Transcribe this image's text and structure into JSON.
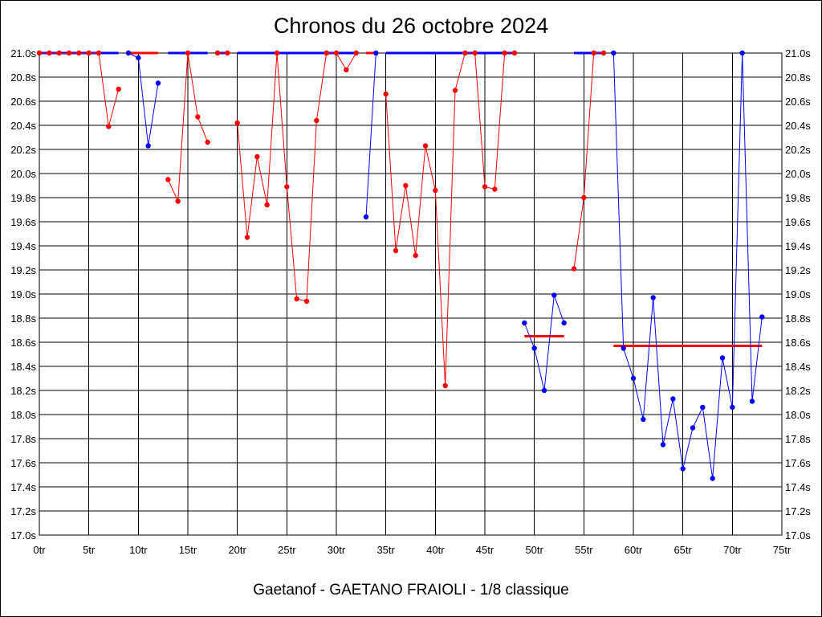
{
  "chart_data": {
    "type": "line",
    "title": "Chronos du 26 octobre 2024",
    "footer": "Gaetanof - GAETANO FRAIOLI - 1/8 classique",
    "xlabel": "",
    "ylabel": "",
    "x_tick_suffix": "tr",
    "y_tick_suffix": "s",
    "xlim": [
      0,
      75
    ],
    "ylim": [
      17.0,
      21.0
    ],
    "x_ticks": [
      0,
      5,
      10,
      15,
      20,
      25,
      30,
      35,
      40,
      45,
      50,
      55,
      60,
      65,
      70,
      75
    ],
    "y_ticks": [
      17.0,
      17.2,
      17.4,
      17.6,
      17.8,
      18.0,
      18.2,
      18.4,
      18.6,
      18.8,
      19.0,
      19.2,
      19.4,
      19.6,
      19.8,
      20.0,
      20.2,
      20.4,
      20.6,
      20.8,
      21.0
    ],
    "grid": true,
    "colors": {
      "red": "#ff0000",
      "blue": "#0000ff"
    },
    "segments": [
      {
        "color": "red",
        "points": [
          [
            0,
            21.0
          ],
          [
            1,
            21.0
          ],
          [
            2,
            21.0
          ],
          [
            3,
            21.0
          ],
          [
            4,
            21.0
          ],
          [
            5,
            21.0
          ],
          [
            6,
            21.0
          ],
          [
            7,
            20.39
          ],
          [
            8,
            20.7
          ]
        ]
      },
      {
        "color": "blue",
        "points": [
          [
            9,
            21.0
          ],
          [
            10,
            20.96
          ],
          [
            11,
            20.23
          ],
          [
            12,
            20.75
          ]
        ]
      },
      {
        "color": "red",
        "points": [
          [
            13,
            19.95
          ],
          [
            14,
            19.77
          ],
          [
            15,
            21.0
          ],
          [
            16,
            20.47
          ],
          [
            17,
            20.26
          ]
        ]
      },
      {
        "color": "red",
        "points": [
          [
            18,
            21.0
          ],
          [
            19,
            21.0
          ]
        ]
      },
      {
        "color": "red",
        "points": [
          [
            20,
            20.42
          ],
          [
            21,
            19.47
          ],
          [
            22,
            20.14
          ],
          [
            23,
            19.74
          ],
          [
            24,
            21.0
          ],
          [
            25,
            19.89
          ],
          [
            26,
            18.96
          ],
          [
            27,
            18.94
          ],
          [
            28,
            20.44
          ],
          [
            29,
            21.0
          ],
          [
            30,
            21.0
          ],
          [
            31,
            20.86
          ],
          [
            32,
            21.0
          ]
        ]
      },
      {
        "color": "blue",
        "points": [
          [
            33,
            19.64
          ],
          [
            34,
            21.0
          ]
        ]
      },
      {
        "color": "red",
        "points": [
          [
            35,
            20.66
          ],
          [
            36,
            19.36
          ],
          [
            37,
            19.9
          ],
          [
            38,
            19.32
          ],
          [
            39,
            20.23
          ],
          [
            40,
            19.86
          ],
          [
            41,
            18.24
          ],
          [
            42,
            20.69
          ],
          [
            43,
            21.0
          ],
          [
            44,
            21.0
          ],
          [
            45,
            19.89
          ],
          [
            46,
            19.87
          ],
          [
            47,
            21.0
          ],
          [
            48,
            21.0
          ]
        ]
      },
      {
        "color": "blue",
        "points": [
          [
            49,
            18.76
          ],
          [
            50,
            18.55
          ],
          [
            51,
            18.2
          ],
          [
            52,
            18.99
          ],
          [
            53,
            18.76
          ]
        ]
      },
      {
        "color": "red",
        "points": [
          [
            54,
            19.21
          ],
          [
            55,
            19.8
          ],
          [
            56,
            21.0
          ],
          [
            57,
            21.0
          ]
        ]
      },
      {
        "color": "blue",
        "points": [
          [
            58,
            21.0
          ],
          [
            59,
            18.55
          ],
          [
            60,
            18.3
          ],
          [
            61,
            17.96
          ],
          [
            62,
            18.97
          ],
          [
            63,
            17.75
          ],
          [
            64,
            18.13
          ],
          [
            65,
            17.55
          ],
          [
            66,
            17.89
          ],
          [
            67,
            18.06
          ],
          [
            68,
            17.47
          ],
          [
            69,
            18.47
          ],
          [
            70,
            18.06
          ],
          [
            71,
            21.0
          ],
          [
            72,
            18.11
          ],
          [
            73,
            18.81
          ]
        ]
      }
    ],
    "top_bars": [
      {
        "color": "blue",
        "x": [
          0,
          8
        ]
      },
      {
        "color": "red",
        "x": [
          9,
          12
        ]
      },
      {
        "color": "blue",
        "x": [
          13,
          17
        ]
      },
      {
        "color": "blue",
        "x": [
          18,
          19
        ]
      },
      {
        "color": "blue",
        "x": [
          20,
          32
        ]
      },
      {
        "color": "red",
        "x": [
          33,
          34
        ]
      },
      {
        "color": "blue",
        "x": [
          35,
          48
        ]
      },
      {
        "color": "blue",
        "x": [
          54,
          57
        ]
      }
    ],
    "mean_lines": [
      {
        "color": "red",
        "x": [
          49,
          53
        ],
        "y": 18.65
      },
      {
        "color": "red",
        "x": [
          58,
          73
        ],
        "y": 18.57
      }
    ]
  }
}
